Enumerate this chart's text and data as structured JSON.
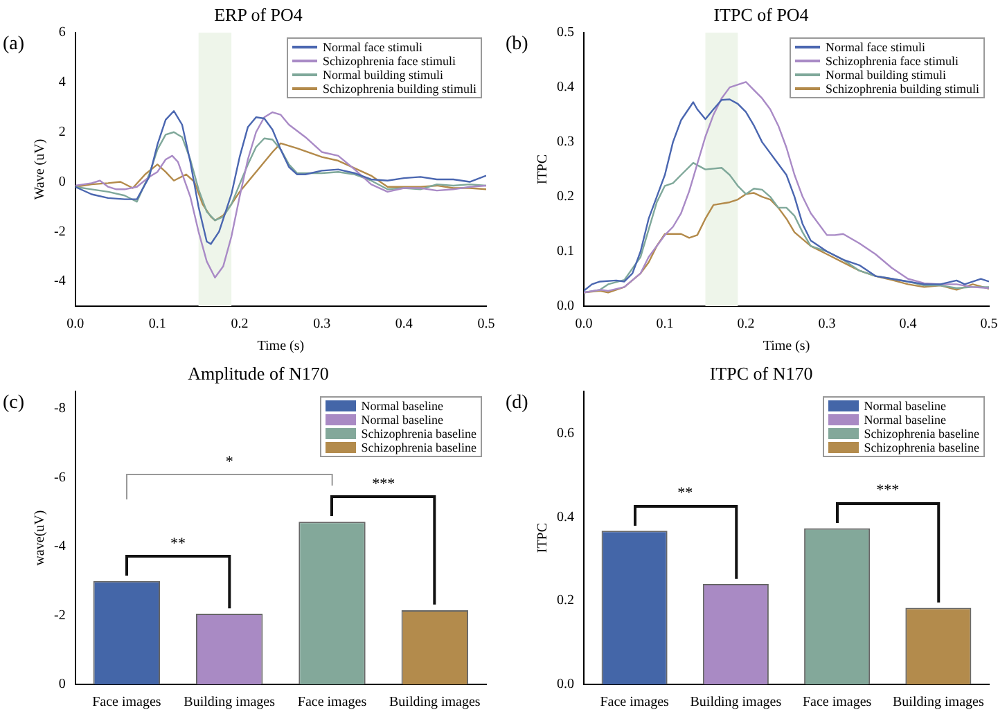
{
  "chart_data": [
    {
      "type": "line",
      "title": "ERP of PO4",
      "xlabel": "Time (s)",
      "ylabel": "Wave (uV)",
      "annotations": [
        "(a)"
      ],
      "legend": "top right",
      "marker": "none",
      "xlim": [
        0,
        0.5
      ],
      "xticks": [
        {
          "value": 0,
          "label": "0.0"
        },
        {
          "value": 0.1,
          "label": "0.1"
        },
        {
          "value": 0.2,
          "label": "0.2"
        },
        {
          "value": 0.3,
          "label": "0.3"
        },
        {
          "value": 0.4,
          "label": "0.4"
        },
        {
          "value": 0.5,
          "label": "0.5"
        }
      ],
      "ylim": [
        -5,
        6
      ],
      "yticks": [
        -4,
        -2,
        0,
        2,
        4,
        6
      ],
      "bands": [
        {
          "axis": "x",
          "from": 0.15,
          "to": 0.19,
          "color": "#eef5ea"
        }
      ],
      "series": [
        {
          "name": "Normal face stimuli",
          "color": "#4a66b0",
          "x": [
            0,
            0.02,
            0.04,
            0.06,
            0.075,
            0.09,
            0.1,
            0.11,
            0.12,
            0.13,
            0.14,
            0.15,
            0.16,
            0.165,
            0.175,
            0.19,
            0.2,
            0.21,
            0.22,
            0.23,
            0.24,
            0.25,
            0.26,
            0.27,
            0.28,
            0.3,
            0.32,
            0.34,
            0.36,
            0.38,
            0.4,
            0.42,
            0.44,
            0.46,
            0.48,
            0.5
          ],
          "values": [
            -0.2,
            -0.5,
            -0.65,
            -0.7,
            -0.7,
            0.2,
            1.5,
            2.5,
            2.85,
            2.3,
            0.8,
            -1.0,
            -2.4,
            -2.5,
            -2.0,
            -0.5,
            1.0,
            2.2,
            2.6,
            2.55,
            2.1,
            1.3,
            0.6,
            0.3,
            0.3,
            0.45,
            0.5,
            0.35,
            0.1,
            0.05,
            0.15,
            0.2,
            0.1,
            0.1,
            0.0,
            0.25
          ]
        },
        {
          "name": "Schizophrenia face stimuli",
          "color": "#a98ac6",
          "x": [
            0,
            0.02,
            0.03,
            0.04,
            0.05,
            0.06,
            0.075,
            0.09,
            0.1,
            0.11,
            0.118,
            0.125,
            0.14,
            0.15,
            0.16,
            0.17,
            0.18,
            0.19,
            0.2,
            0.21,
            0.22,
            0.23,
            0.24,
            0.25,
            0.26,
            0.28,
            0.3,
            0.32,
            0.34,
            0.36,
            0.38,
            0.4,
            0.42,
            0.44,
            0.46,
            0.48,
            0.5
          ],
          "values": [
            -0.15,
            -0.05,
            0.05,
            -0.2,
            -0.3,
            -0.3,
            -0.2,
            0.2,
            0.4,
            0.9,
            1.05,
            0.8,
            -0.6,
            -2.0,
            -3.2,
            -3.85,
            -3.4,
            -2.2,
            -0.6,
            0.9,
            2.0,
            2.6,
            2.8,
            2.7,
            2.3,
            1.8,
            1.2,
            1.05,
            0.5,
            -0.1,
            -0.4,
            -0.25,
            -0.25,
            -0.35,
            -0.3,
            -0.2,
            -0.15
          ]
        },
        {
          "name": "Normal building stimuli",
          "color": "#7fa89a",
          "x": [
            0,
            0.02,
            0.04,
            0.06,
            0.075,
            0.09,
            0.1,
            0.11,
            0.12,
            0.13,
            0.14,
            0.15,
            0.16,
            0.17,
            0.18,
            0.19,
            0.2,
            0.21,
            0.22,
            0.23,
            0.24,
            0.25,
            0.26,
            0.27,
            0.3,
            0.32,
            0.34,
            0.36,
            0.38,
            0.4,
            0.42,
            0.44,
            0.46,
            0.48,
            0.5
          ],
          "values": [
            -0.2,
            -0.3,
            -0.4,
            -0.55,
            -0.8,
            0.3,
            1.3,
            1.9,
            2.0,
            1.8,
            0.9,
            -0.3,
            -1.2,
            -1.55,
            -1.4,
            -0.9,
            -0.1,
            0.7,
            1.4,
            1.75,
            1.7,
            1.3,
            0.7,
            0.35,
            0.35,
            0.4,
            0.3,
            0.05,
            -0.3,
            -0.25,
            -0.3,
            -0.1,
            -0.15,
            -0.1,
            -0.15
          ]
        },
        {
          "name": "Schizophrenia building stimuli",
          "color": "#b38a4a",
          "x": [
            0,
            0.02,
            0.04,
            0.055,
            0.07,
            0.085,
            0.1,
            0.11,
            0.12,
            0.135,
            0.145,
            0.155,
            0.165,
            0.17,
            0.18,
            0.19,
            0.2,
            0.22,
            0.24,
            0.25,
            0.27,
            0.3,
            0.32,
            0.34,
            0.36,
            0.38,
            0.4,
            0.42,
            0.44,
            0.46,
            0.48,
            0.5
          ],
          "values": [
            -0.2,
            -0.1,
            -0.05,
            0.0,
            -0.25,
            0.3,
            0.7,
            0.4,
            0.05,
            0.3,
            0.0,
            -0.9,
            -1.4,
            -1.55,
            -1.35,
            -0.9,
            -0.4,
            0.4,
            1.2,
            1.55,
            1.35,
            1.0,
            0.85,
            0.55,
            0.25,
            -0.2,
            -0.2,
            -0.2,
            -0.15,
            -0.25,
            -0.25,
            -0.3
          ]
        }
      ]
    },
    {
      "type": "line",
      "title": "ITPC of PO4",
      "xlabel": "Time (s)",
      "ylabel": "ITPC",
      "annotations": [
        "(b)"
      ],
      "legend": "top right",
      "marker": "none",
      "xlim": [
        0,
        0.5
      ],
      "xticks": [
        {
          "value": 0,
          "label": "0.0"
        },
        {
          "value": 0.1,
          "label": "0.1"
        },
        {
          "value": 0.2,
          "label": "0.2"
        },
        {
          "value": 0.3,
          "label": "0.3"
        },
        {
          "value": 0.4,
          "label": "0.4"
        },
        {
          "value": 0.5,
          "label": "0.5"
        }
      ],
      "ylim": [
        0,
        0.5
      ],
      "yticks": [
        {
          "value": 0,
          "label": "0.0"
        },
        {
          "value": 0.1,
          "label": "0.1"
        },
        {
          "value": 0.2,
          "label": "0.2"
        },
        {
          "value": 0.3,
          "label": "0.3"
        },
        {
          "value": 0.4,
          "label": "0.4"
        },
        {
          "value": 0.5,
          "label": "0.5"
        }
      ],
      "bands": [
        {
          "axis": "x",
          "from": 0.15,
          "to": 0.19,
          "color": "#eef5ea"
        }
      ],
      "series": [
        {
          "name": "Normal face stimuli",
          "color": "#4a66b0",
          "x": [
            0,
            0.01,
            0.02,
            0.04,
            0.05,
            0.06,
            0.07,
            0.08,
            0.09,
            0.1,
            0.11,
            0.12,
            0.135,
            0.14,
            0.15,
            0.16,
            0.17,
            0.18,
            0.19,
            0.2,
            0.21,
            0.22,
            0.24,
            0.25,
            0.26,
            0.27,
            0.28,
            0.3,
            0.32,
            0.34,
            0.36,
            0.38,
            0.4,
            0.42,
            0.44,
            0.46,
            0.47,
            0.49,
            0.5
          ],
          "values": [
            0.028,
            0.04,
            0.045,
            0.047,
            0.045,
            0.06,
            0.1,
            0.16,
            0.2,
            0.24,
            0.3,
            0.34,
            0.373,
            0.36,
            0.342,
            0.36,
            0.377,
            0.378,
            0.37,
            0.355,
            0.33,
            0.3,
            0.26,
            0.24,
            0.2,
            0.15,
            0.12,
            0.1,
            0.085,
            0.075,
            0.055,
            0.05,
            0.045,
            0.04,
            0.04,
            0.047,
            0.04,
            0.05,
            0.045
          ]
        },
        {
          "name": "Schizophrenia face stimuli",
          "color": "#a98ac6",
          "x": [
            0,
            0.02,
            0.03,
            0.05,
            0.07,
            0.08,
            0.1,
            0.11,
            0.12,
            0.13,
            0.14,
            0.15,
            0.16,
            0.17,
            0.18,
            0.2,
            0.21,
            0.22,
            0.23,
            0.24,
            0.25,
            0.26,
            0.27,
            0.28,
            0.3,
            0.31,
            0.32,
            0.34,
            0.36,
            0.38,
            0.4,
            0.42,
            0.44,
            0.46,
            0.48,
            0.5
          ],
          "values": [
            0.025,
            0.03,
            0.028,
            0.035,
            0.06,
            0.09,
            0.13,
            0.145,
            0.17,
            0.21,
            0.26,
            0.31,
            0.35,
            0.38,
            0.4,
            0.41,
            0.395,
            0.38,
            0.36,
            0.33,
            0.29,
            0.24,
            0.2,
            0.17,
            0.13,
            0.13,
            0.132,
            0.115,
            0.095,
            0.07,
            0.05,
            0.042,
            0.04,
            0.04,
            0.035,
            0.033
          ]
        },
        {
          "name": "Normal building stimuli",
          "color": "#7fa89a",
          "x": [
            0,
            0.02,
            0.03,
            0.05,
            0.07,
            0.08,
            0.09,
            0.1,
            0.11,
            0.12,
            0.135,
            0.15,
            0.17,
            0.18,
            0.19,
            0.2,
            0.21,
            0.22,
            0.23,
            0.24,
            0.25,
            0.26,
            0.27,
            0.28,
            0.3,
            0.32,
            0.34,
            0.36,
            0.38,
            0.4,
            0.42,
            0.44,
            0.46,
            0.48,
            0.5
          ],
          "values": [
            0.025,
            0.03,
            0.04,
            0.048,
            0.09,
            0.14,
            0.19,
            0.22,
            0.225,
            0.24,
            0.262,
            0.25,
            0.253,
            0.24,
            0.22,
            0.205,
            0.215,
            0.213,
            0.2,
            0.18,
            0.18,
            0.165,
            0.135,
            0.11,
            0.1,
            0.085,
            0.065,
            0.055,
            0.05,
            0.045,
            0.038,
            0.038,
            0.033,
            0.035,
            0.035
          ]
        },
        {
          "name": "Schizophrenia building stimuli",
          "color": "#b38a4a",
          "x": [
            0,
            0.02,
            0.03,
            0.05,
            0.07,
            0.08,
            0.09,
            0.1,
            0.12,
            0.13,
            0.14,
            0.15,
            0.16,
            0.18,
            0.19,
            0.2,
            0.21,
            0.22,
            0.23,
            0.24,
            0.25,
            0.26,
            0.28,
            0.3,
            0.32,
            0.34,
            0.36,
            0.38,
            0.4,
            0.42,
            0.44,
            0.46,
            0.48,
            0.5
          ],
          "values": [
            0.025,
            0.028,
            0.025,
            0.035,
            0.06,
            0.08,
            0.11,
            0.132,
            0.132,
            0.125,
            0.13,
            0.16,
            0.185,
            0.19,
            0.195,
            0.205,
            0.207,
            0.2,
            0.195,
            0.18,
            0.16,
            0.135,
            0.11,
            0.095,
            0.08,
            0.065,
            0.055,
            0.048,
            0.04,
            0.035,
            0.038,
            0.03,
            0.04,
            0.032
          ]
        }
      ]
    },
    {
      "type": "bar",
      "title": "Amplitude of N170",
      "ylabel": "wave(uV)",
      "annotations": [
        "(c)",
        "**",
        "*",
        "***"
      ],
      "legend": "top right",
      "categories": [
        "Face images",
        "Building images",
        "Face images",
        "Building images"
      ],
      "ylim": [
        0,
        -8.5
      ],
      "yticks": [
        0,
        -2,
        -4,
        -6,
        -8
      ],
      "series": [
        {
          "name": "Normal baseline",
          "color": "#4466a8",
          "values": [
            -3.0,
            null,
            null,
            null
          ]
        },
        {
          "name": "Normal baseline",
          "color": "#a98ac4",
          "values": [
            null,
            -2.05,
            null,
            null
          ]
        },
        {
          "name": "Schizophrenia baseline",
          "color": "#83a89a",
          "values": [
            null,
            null,
            -4.72,
            null
          ]
        },
        {
          "name": "Schizophrenia baseline",
          "color": "#b38b4c",
          "values": [
            null,
            null,
            null,
            -2.15
          ]
        }
      ]
    },
    {
      "type": "bar",
      "title": "ITPC of N170",
      "ylabel": "ITPC",
      "annotations": [
        "(d)",
        "**",
        "***"
      ],
      "legend": "top right",
      "categories": [
        "Face images",
        "Building images",
        "Face images",
        "Building images"
      ],
      "ylim": [
        0,
        0.7
      ],
      "yticks": [
        {
          "value": 0,
          "label": "0.0"
        },
        {
          "value": 0.2,
          "label": "0.2"
        },
        {
          "value": 0.4,
          "label": "0.4"
        },
        {
          "value": 0.6,
          "label": "0.6"
        }
      ],
      "series": [
        {
          "name": "Normal baseline",
          "color": "#4466a8",
          "values": [
            0.367,
            null,
            null,
            null
          ]
        },
        {
          "name": "Normal baseline",
          "color": "#a98ac4",
          "values": [
            null,
            0.24,
            null,
            null
          ]
        },
        {
          "name": "Schizophrenia baseline",
          "color": "#83a89a",
          "values": [
            null,
            null,
            0.373,
            null
          ]
        },
        {
          "name": "Schizophrenia baseline",
          "color": "#b38b4c",
          "values": [
            null,
            null,
            null,
            0.183
          ]
        }
      ]
    }
  ]
}
